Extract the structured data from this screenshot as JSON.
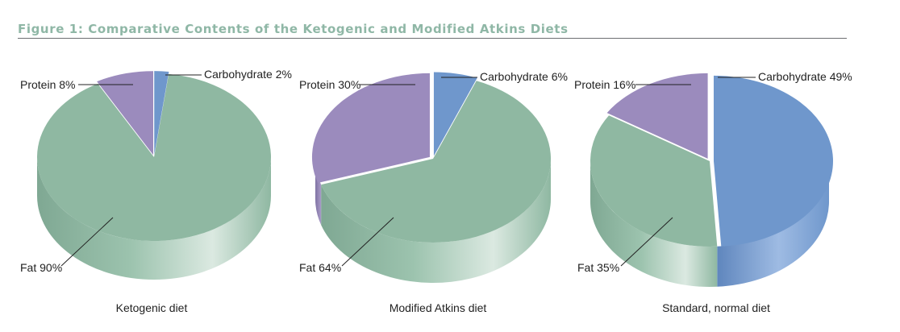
{
  "figure_title": "Figure 1: Comparative Contents of the Ketogenic and Modified Atkins Diets",
  "colors": {
    "title": "#8fb7a6",
    "fat": "#8fb8a2",
    "protein": "#9b8bbd",
    "carbohydrate": "#6f97cc"
  },
  "chart_data": [
    {
      "type": "pie",
      "caption": "Ketogenic diet",
      "slices": [
        {
          "name": "Carbohydrate",
          "value": 2,
          "label": "Carbohydrate 2%"
        },
        {
          "name": "Fat",
          "value": 90,
          "label": "Fat 90%"
        },
        {
          "name": "Protein",
          "value": 8,
          "label": "Protein 8%"
        }
      ]
    },
    {
      "type": "pie",
      "caption": "Modified Atkins diet",
      "slices": [
        {
          "name": "Carbohydrate",
          "value": 6,
          "label": "Carbohydrate 6%"
        },
        {
          "name": "Fat",
          "value": 64,
          "label": "Fat 64%"
        },
        {
          "name": "Protein",
          "value": 30,
          "label": "Protein 30%"
        }
      ]
    },
    {
      "type": "pie",
      "caption": "Standard, normal diet",
      "slices": [
        {
          "name": "Carbohydrate",
          "value": 49,
          "label": "Carbohydrate 49%"
        },
        {
          "name": "Fat",
          "value": 35,
          "label": "Fat 35%"
        },
        {
          "name": "Protein",
          "value": 16,
          "label": "Protein 16%"
        }
      ]
    }
  ]
}
